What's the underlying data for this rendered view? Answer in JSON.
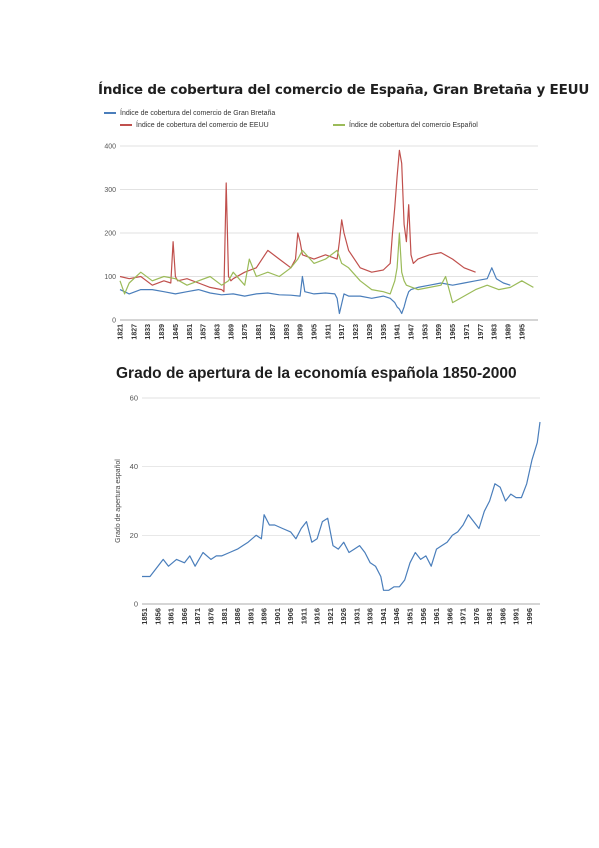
{
  "chart_data": [
    {
      "type": "line",
      "title": "Índice de cobertura del comercio de España, Gran Bretaña y EEUU",
      "ylim": [
        0,
        400
      ],
      "yticks": [
        0,
        100,
        200,
        300,
        400
      ],
      "xlim": [
        1821,
        2002
      ],
      "xticks": [
        1821,
        1827,
        1833,
        1839,
        1845,
        1851,
        1857,
        1863,
        1869,
        1875,
        1881,
        1887,
        1893,
        1899,
        1905,
        1911,
        1917,
        1923,
        1929,
        1935,
        1941,
        1947,
        1953,
        1959,
        1965,
        1971,
        1977,
        1983,
        1989,
        1995
      ],
      "grid": "horizontal",
      "legend_position": "top",
      "series": [
        {
          "name": "Índice de cobertura del comercio de Gran Bretaña",
          "color": "#4a7ebb",
          "x": [
            1821,
            1825,
            1830,
            1835,
            1840,
            1845,
            1850,
            1855,
            1860,
            1865,
            1870,
            1875,
            1880,
            1885,
            1890,
            1895,
            1899,
            1900,
            1901,
            1905,
            1910,
            1914,
            1915,
            1916,
            1918,
            1920,
            1925,
            1930,
            1935,
            1938,
            1939,
            1940,
            1941,
            1942,
            1943,
            1944,
            1945,
            1946,
            1947,
            1950,
            1955,
            1960,
            1965,
            1970,
            1975,
            1980,
            1982,
            1984,
            1987,
            1990
          ],
          "y": [
            70,
            60,
            70,
            70,
            65,
            60,
            65,
            70,
            62,
            58,
            60,
            55,
            60,
            62,
            58,
            57,
            55,
            100,
            65,
            60,
            62,
            60,
            50,
            15,
            60,
            55,
            55,
            50,
            55,
            50,
            45,
            40,
            30,
            25,
            15,
            30,
            50,
            65,
            70,
            75,
            80,
            85,
            80,
            85,
            90,
            95,
            120,
            95,
            85,
            80
          ]
        },
        {
          "name": "Índice de cobertura del comercio de EEUU",
          "color": "#c0504d",
          "x": [
            1821,
            1825,
            1830,
            1835,
            1840,
            1843,
            1844,
            1845,
            1846,
            1850,
            1855,
            1860,
            1865,
            1866,
            1867,
            1868,
            1869,
            1870,
            1875,
            1880,
            1885,
            1890,
            1895,
            1897,
            1898,
            1899,
            1900,
            1905,
            1910,
            1915,
            1916,
            1917,
            1918,
            1920,
            1925,
            1930,
            1935,
            1938,
            1939,
            1940,
            1941,
            1942,
            1943,
            1944,
            1945,
            1946,
            1947,
            1948,
            1950,
            1955,
            1960,
            1965,
            1970,
            1975
          ],
          "y": [
            100,
            95,
            100,
            80,
            90,
            85,
            180,
            100,
            90,
            95,
            85,
            75,
            70,
            65,
            315,
            100,
            90,
            95,
            110,
            120,
            160,
            140,
            120,
            140,
            200,
            180,
            150,
            140,
            150,
            140,
            180,
            230,
            200,
            160,
            120,
            110,
            115,
            130,
            200,
            260,
            330,
            390,
            360,
            220,
            180,
            265,
            150,
            130,
            140,
            150,
            155,
            140,
            120,
            110
          ]
        },
        {
          "name": "Índice de cobertura del comercio Español",
          "color": "#9bbb59",
          "x": [
            1821,
            1823,
            1825,
            1830,
            1835,
            1840,
            1845,
            1850,
            1855,
            1860,
            1865,
            1868,
            1870,
            1875,
            1877,
            1880,
            1885,
            1890,
            1895,
            1898,
            1900,
            1905,
            1910,
            1915,
            1917,
            1920,
            1925,
            1930,
            1935,
            1938,
            1940,
            1941,
            1942,
            1943,
            1944,
            1945,
            1950,
            1955,
            1960,
            1962,
            1965,
            1970,
            1975,
            1980,
            1985,
            1990,
            1995,
            2000
          ],
          "y": [
            90,
            60,
            85,
            110,
            90,
            100,
            95,
            80,
            90,
            100,
            80,
            90,
            110,
            80,
            140,
            100,
            110,
            100,
            120,
            140,
            160,
            130,
            140,
            160,
            130,
            120,
            90,
            70,
            65,
            60,
            90,
            120,
            200,
            110,
            90,
            80,
            70,
            75,
            80,
            100,
            40,
            55,
            70,
            80,
            70,
            75,
            90,
            75
          ]
        }
      ]
    },
    {
      "type": "line",
      "title": "Grado de apertura de la economía española 1850-2000",
      "ylabel": "Grado de apertura español",
      "ylim": [
        0,
        60
      ],
      "yticks": [
        0,
        20,
        40,
        60
      ],
      "xlim": [
        1850,
        2000
      ],
      "xticks": [
        1851,
        1856,
        1861,
        1866,
        1871,
        1876,
        1881,
        1886,
        1891,
        1896,
        1901,
        1906,
        1911,
        1916,
        1921,
        1926,
        1931,
        1936,
        1941,
        1946,
        1951,
        1956,
        1961,
        1966,
        1971,
        1976,
        1981,
        1986,
        1991,
        1996
      ],
      "grid": "horizontal",
      "series": [
        {
          "name": "",
          "color": "#4a7ebb",
          "x": [
            1850,
            1853,
            1856,
            1858,
            1860,
            1863,
            1866,
            1868,
            1870,
            1873,
            1876,
            1878,
            1880,
            1883,
            1886,
            1888,
            1890,
            1893,
            1895,
            1896,
            1898,
            1900,
            1903,
            1906,
            1908,
            1910,
            1912,
            1914,
            1916,
            1918,
            1920,
            1922,
            1924,
            1926,
            1928,
            1930,
            1932,
            1934,
            1936,
            1938,
            1940,
            1941,
            1943,
            1945,
            1947,
            1949,
            1951,
            1953,
            1955,
            1957,
            1959,
            1961,
            1963,
            1965,
            1967,
            1969,
            1971,
            1973,
            1975,
            1977,
            1979,
            1981,
            1983,
            1985,
            1987,
            1989,
            1991,
            1993,
            1995,
            1997,
            1999,
            2000
          ],
          "y": [
            8,
            8,
            11,
            13,
            11,
            13,
            12,
            14,
            11,
            15,
            13,
            14,
            14,
            15,
            16,
            17,
            18,
            20,
            19,
            26,
            23,
            23,
            22,
            21,
            19,
            22,
            24,
            18,
            19,
            24,
            25,
            17,
            16,
            18,
            15,
            16,
            17,
            15,
            12,
            11,
            8,
            4,
            4,
            5,
            5,
            7,
            12,
            15,
            13,
            14,
            11,
            16,
            17,
            18,
            20,
            21,
            23,
            26,
            24,
            22,
            27,
            30,
            35,
            34,
            30,
            32,
            31,
            31,
            35,
            42,
            47,
            53
          ]
        }
      ]
    }
  ]
}
